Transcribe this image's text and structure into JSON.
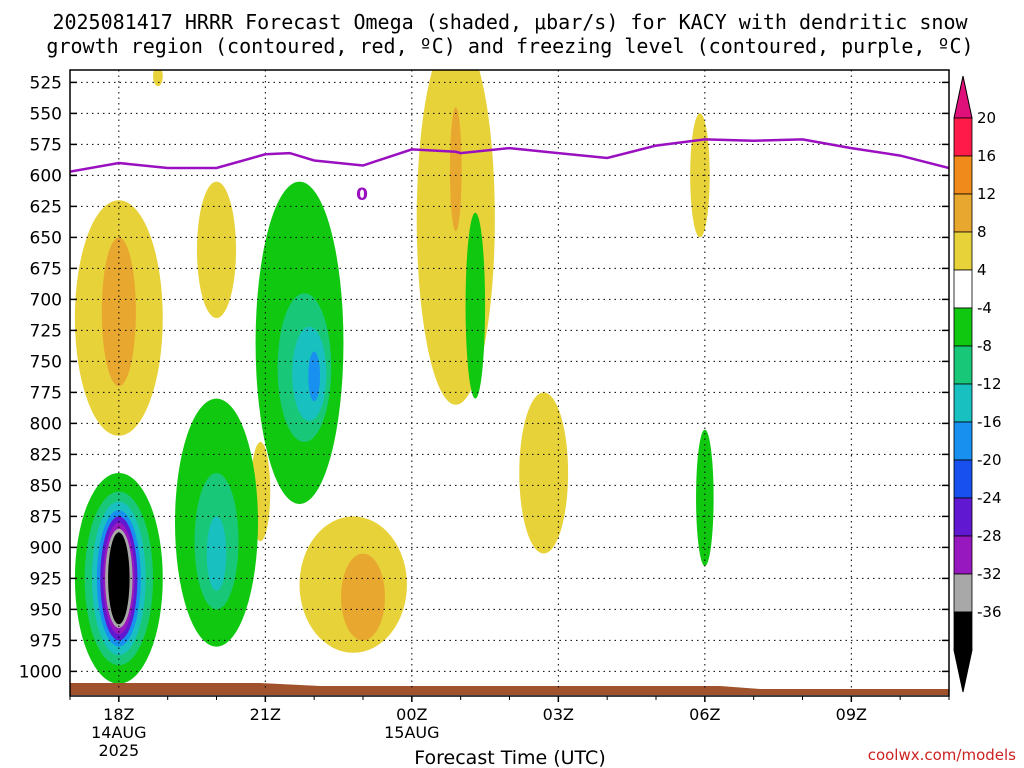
{
  "chart_data": {
    "type": "heatmap",
    "title_line1": "2025081417 HRRR Forecast Omega (shaded, μbar/s) for KACY with dendritic snow",
    "title_line2": "growth region (contoured, red, ºC) and freezing level (contoured, purple, ºC)",
    "xlabel": "Forecast Time (UTC)",
    "credit": "coolwx.com/models",
    "y_ticks": [
      "525",
      "550",
      "575",
      "600",
      "625",
      "650",
      "675",
      "700",
      "725",
      "750",
      "775",
      "800",
      "825",
      "850",
      "875",
      "900",
      "925",
      "950",
      "975",
      "1000"
    ],
    "x_ticks": [
      {
        "label": "18Z",
        "sub1": "14AUG",
        "sub2": "2025"
      },
      {
        "label": "21Z",
        "sub1": "",
        "sub2": ""
      },
      {
        "label": "00Z",
        "sub1": "15AUG",
        "sub2": ""
      },
      {
        "label": "03Z",
        "sub1": "",
        "sub2": ""
      },
      {
        "label": "06Z",
        "sub1": "",
        "sub2": ""
      },
      {
        "label": "09Z",
        "sub1": "",
        "sub2": ""
      }
    ],
    "x_range_hours": [
      -1,
      17
    ],
    "y_range_hpa": [
      515,
      1015
    ],
    "colorbar": {
      "labels": [
        "20",
        "16",
        "12",
        "8",
        "4",
        "-4",
        "-8",
        "-12",
        "-16",
        "-20",
        "-24",
        "-28",
        "-32",
        "-36"
      ],
      "colors": [
        "#ff1a4a",
        "#f08a1a",
        "#e8a830",
        "#e8d23a",
        "#ffffff",
        "#10c810",
        "#18c878",
        "#18c0c0",
        "#1890f0",
        "#1850f0",
        "#6018d0",
        "#9818c0",
        "#a8a8a8",
        "#000000"
      ],
      "top_triangle": "#e0107a",
      "bottom_triangle": "#000000"
    },
    "freezing_level": {
      "label": "0",
      "color": "#9a10c0",
      "hours": [
        -1,
        0,
        1,
        2,
        3,
        3.5,
        4,
        5,
        6,
        6.9,
        7,
        8,
        9,
        10,
        11,
        12,
        13,
        14,
        15,
        16,
        17
      ],
      "pressure_hpa": [
        597,
        590,
        594,
        594,
        583,
        582,
        588,
        592,
        579,
        581,
        582,
        578,
        582,
        586,
        576,
        571,
        572,
        571,
        578,
        584,
        594
      ]
    },
    "omega_cells": [
      {
        "name": "positive",
        "hour": 0.8,
        "p": 520,
        "rx": 0.1,
        "rp": 8,
        "value": 4
      },
      {
        "name": "positive",
        "hour": 0.0,
        "p": 715,
        "rx": 0.9,
        "rp": 95,
        "value": 4
      },
      {
        "name": "positive",
        "hour": 0.0,
        "p": 710,
        "rx": 0.35,
        "rp": 60,
        "value": 8
      },
      {
        "name": "positive",
        "hour": 2.0,
        "p": 660,
        "rx": 0.4,
        "rp": 55,
        "value": 4
      },
      {
        "name": "positive",
        "hour": 2.9,
        "p": 855,
        "rx": 0.2,
        "rp": 40,
        "value": 4
      },
      {
        "name": "positive",
        "hour": 4.8,
        "p": 930,
        "rx": 1.1,
        "rp": 55,
        "value": 4
      },
      {
        "name": "positive",
        "hour": 5.0,
        "p": 940,
        "rx": 0.45,
        "rp": 35,
        "value": 8
      },
      {
        "name": "positive",
        "hour": 6.9,
        "p": 635,
        "rx": 0.8,
        "rp": 150,
        "value": 4
      },
      {
        "name": "positive",
        "hour": 6.9,
        "p": 595,
        "rx": 0.12,
        "rp": 50,
        "value": 8
      },
      {
        "name": "positive",
        "hour": 8.7,
        "p": 840,
        "rx": 0.5,
        "rp": 65,
        "value": 4
      },
      {
        "name": "positive",
        "hour": 11.9,
        "p": 600,
        "rx": 0.2,
        "rp": 50,
        "value": 4
      },
      {
        "name": "negative",
        "hour": 0.0,
        "p": 925,
        "rx": 0.9,
        "rp": 85,
        "value": -4
      },
      {
        "name": "negative",
        "hour": 0.0,
        "p": 925,
        "rx": 0.7,
        "rp": 70,
        "value": -8
      },
      {
        "name": "negative",
        "hour": 0.0,
        "p": 925,
        "rx": 0.55,
        "rp": 62,
        "value": -12
      },
      {
        "name": "negative",
        "hour": 0.0,
        "p": 925,
        "rx": 0.45,
        "rp": 55,
        "value": -16
      },
      {
        "name": "negative",
        "hour": 0.0,
        "p": 925,
        "rx": 0.38,
        "rp": 50,
        "value": -24
      },
      {
        "name": "negative",
        "hour": 0.0,
        "p": 925,
        "rx": 0.32,
        "rp": 45,
        "value": -28
      },
      {
        "name": "negative",
        "hour": 0.0,
        "p": 925,
        "rx": 0.28,
        "rp": 40,
        "value": -32
      },
      {
        "name": "negative",
        "hour": 0.0,
        "p": 925,
        "rx": 0.22,
        "rp": 37,
        "value": -36
      },
      {
        "name": "negative",
        "hour": 2.0,
        "p": 880,
        "rx": 0.85,
        "rp": 100,
        "value": -4
      },
      {
        "name": "negative",
        "hour": 2.0,
        "p": 895,
        "rx": 0.45,
        "rp": 55,
        "value": -8
      },
      {
        "name": "negative",
        "hour": 2.0,
        "p": 905,
        "rx": 0.2,
        "rp": 30,
        "value": -12
      },
      {
        "name": "negative",
        "hour": 3.7,
        "p": 735,
        "rx": 0.9,
        "rp": 130,
        "value": -4
      },
      {
        "name": "negative",
        "hour": 3.8,
        "p": 755,
        "rx": 0.55,
        "rp": 60,
        "value": -8
      },
      {
        "name": "negative",
        "hour": 3.9,
        "p": 760,
        "rx": 0.35,
        "rp": 38,
        "value": -12
      },
      {
        "name": "negative",
        "hour": 4.0,
        "p": 762,
        "rx": 0.12,
        "rp": 20,
        "value": -16
      },
      {
        "name": "negative",
        "hour": 7.3,
        "p": 705,
        "rx": 0.2,
        "rp": 75,
        "value": -4
      },
      {
        "name": "negative",
        "hour": 12.0,
        "p": 860,
        "rx": 0.18,
        "rp": 55,
        "value": -4
      }
    ]
  }
}
